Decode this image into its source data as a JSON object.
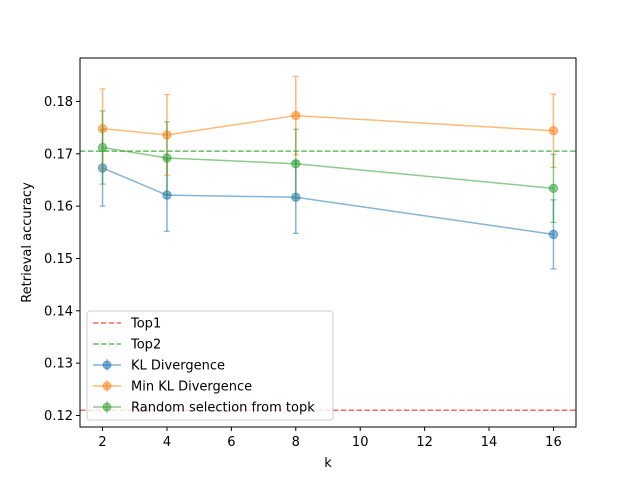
{
  "chart_data": {
    "type": "line",
    "title": "",
    "xlabel": "k",
    "ylabel": "Retrieval accuracy",
    "xlim": [
      1.3,
      16.7
    ],
    "ylim": [
      0.1178,
      0.1883
    ],
    "x_ticks": [
      2,
      4,
      6,
      8,
      10,
      12,
      14,
      16
    ],
    "y_ticks": [
      0.12,
      0.13,
      0.14,
      0.15,
      0.16,
      0.17,
      0.18
    ],
    "x_tick_labels": [
      "2",
      "4",
      "6",
      "8",
      "10",
      "12",
      "14",
      "16"
    ],
    "y_tick_labels": [
      "0.12",
      "0.13",
      "0.14",
      "0.15",
      "0.16",
      "0.17",
      "0.18"
    ],
    "hlines": [
      {
        "name": "Top1",
        "y": 0.121,
        "color": "#ff6666"
      },
      {
        "name": "Top2",
        "y": 0.1705,
        "color": "#66bb66"
      }
    ],
    "series": [
      {
        "name": "KL Divergence",
        "color": "#1f77b4",
        "x": [
          2,
          4,
          8,
          16
        ],
        "values": [
          0.1673,
          0.1621,
          0.1617,
          0.1546
        ],
        "errors": [
          0.0073,
          0.0069,
          0.0069,
          0.0066
        ]
      },
      {
        "name": "Min KL Divergence",
        "color": "#ff7f0e",
        "x": [
          2,
          4,
          8,
          16
        ],
        "values": [
          0.1748,
          0.1736,
          0.1773,
          0.1744
        ],
        "errors": [
          0.0076,
          0.0077,
          0.0075,
          0.007
        ]
      },
      {
        "name": "Random selection from topk",
        "color": "#2ca02c",
        "x": [
          2,
          4,
          8,
          16
        ],
        "values": [
          0.1712,
          0.1692,
          0.1681,
          0.1634
        ],
        "errors": [
          0.007,
          0.0069,
          0.0066,
          0.0065
        ]
      }
    ],
    "legend": {
      "location": "lower-left",
      "entries": [
        "Top1",
        "Top2",
        "KL Divergence",
        "Min KL Divergence",
        "Random selection from topk"
      ]
    }
  }
}
